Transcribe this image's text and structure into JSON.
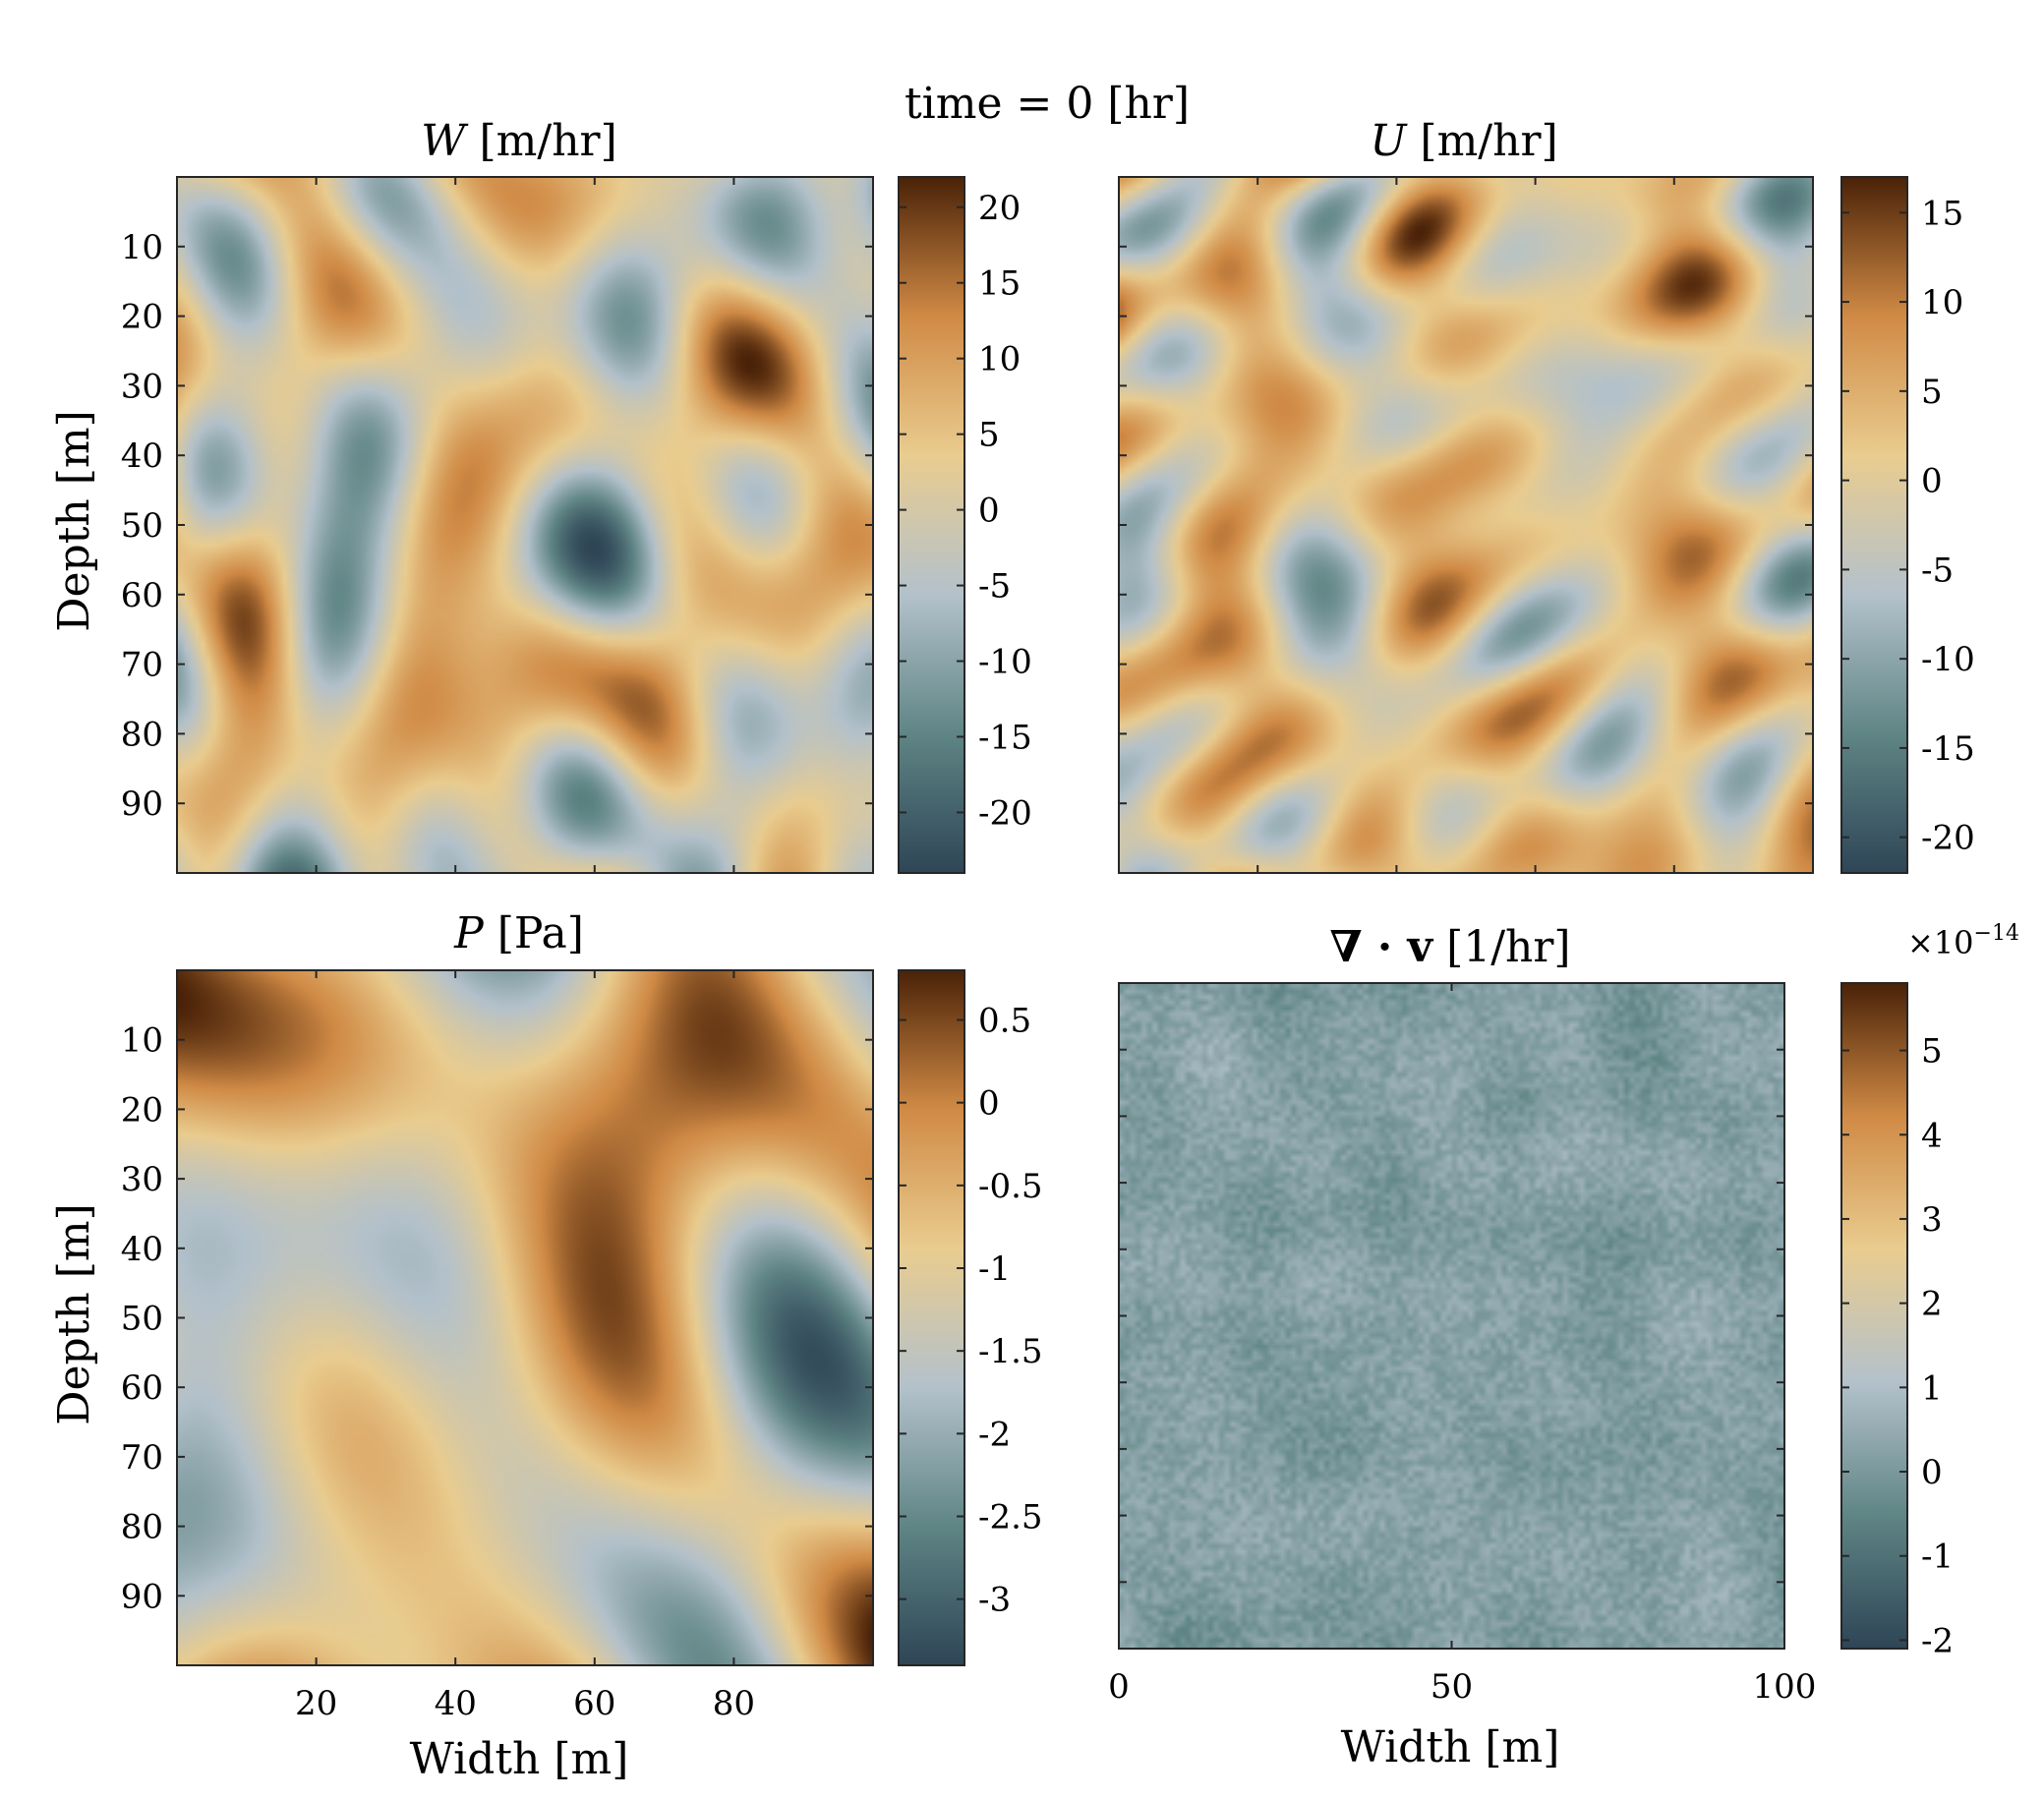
{
  "figure": {
    "suptitle": "time = 0 [hr]"
  },
  "colormap": [
    "#2e4556",
    "#5f8585",
    "#b3c1cb",
    "#e9cc8f",
    "#d08a45",
    "#4a2208"
  ],
  "chart_data": [
    {
      "type": "heatmap",
      "symbol": "W",
      "title_unit": "[m/hr]",
      "xlabel": "",
      "ylabel": "Depth [m]",
      "xlim": [
        0,
        100
      ],
      "ylim": [
        0,
        100
      ],
      "y_reversed": true,
      "xticks": [
        20,
        40,
        60,
        80
      ],
      "xtick_labels_shown": false,
      "yticks": [
        10,
        20,
        30,
        40,
        50,
        60,
        70,
        80,
        90
      ],
      "colorbar": {
        "min": -24,
        "max": 22,
        "ticks": [
          20,
          15,
          10,
          5,
          0,
          -5,
          -10,
          -15,
          -20
        ],
        "exponent": ""
      },
      "field_seed": 11,
      "field_range": [
        -24,
        22
      ]
    },
    {
      "type": "heatmap",
      "symbol": "U",
      "title_unit": "[m/hr]",
      "xlabel": "",
      "ylabel": "",
      "xlim": [
        0,
        100
      ],
      "ylim": [
        0,
        100
      ],
      "y_reversed": true,
      "xticks": [
        20,
        40,
        60,
        80
      ],
      "xtick_labels_shown": false,
      "yticks": [
        10,
        20,
        30,
        40,
        50,
        60,
        70,
        80,
        90
      ],
      "colorbar": {
        "min": -22,
        "max": 17,
        "ticks": [
          15,
          10,
          5,
          0,
          -5,
          -10,
          -15,
          -20
        ],
        "exponent": ""
      },
      "field_seed": 23,
      "field_range": [
        -16,
        17
      ]
    },
    {
      "type": "heatmap",
      "symbol": "P",
      "title_unit": "[Pa]",
      "xlabel": "Width [m]",
      "ylabel": "Depth [m]",
      "xlim": [
        0,
        100
      ],
      "ylim": [
        0,
        100
      ],
      "y_reversed": true,
      "xticks": [
        20,
        40,
        60,
        80
      ],
      "xtick_labels_shown": true,
      "yticks": [
        10,
        20,
        30,
        40,
        50,
        60,
        70,
        80,
        90
      ],
      "colorbar": {
        "min": -3.4,
        "max": 0.8,
        "ticks": [
          0.5,
          0,
          -0.5,
          -1,
          -1.5,
          -2,
          -2.5,
          -3
        ],
        "exponent": ""
      },
      "field_seed": 37,
      "field_range": [
        -3.3,
        0.8
      ]
    },
    {
      "type": "heatmap",
      "symbol": "∇ · v",
      "title_unit": "[1/hr]",
      "xlabel": "Width [m]",
      "ylabel": "",
      "xlim": [
        0,
        100
      ],
      "ylim": [
        0,
        100
      ],
      "y_reversed": true,
      "xticks": [
        0,
        50,
        100
      ],
      "xtick_labels_shown": true,
      "yticks": [
        10,
        20,
        30,
        40,
        50,
        60,
        70,
        80,
        90
      ],
      "colorbar": {
        "min": -2.1,
        "max": 5.8,
        "ticks": [
          5,
          4,
          3,
          2,
          1,
          0,
          -1,
          -2
        ],
        "exponent": "×10",
        "exponent_power": "−14"
      },
      "field_seed": 51,
      "field_range": [
        -0.6,
        0.9
      ]
    }
  ]
}
